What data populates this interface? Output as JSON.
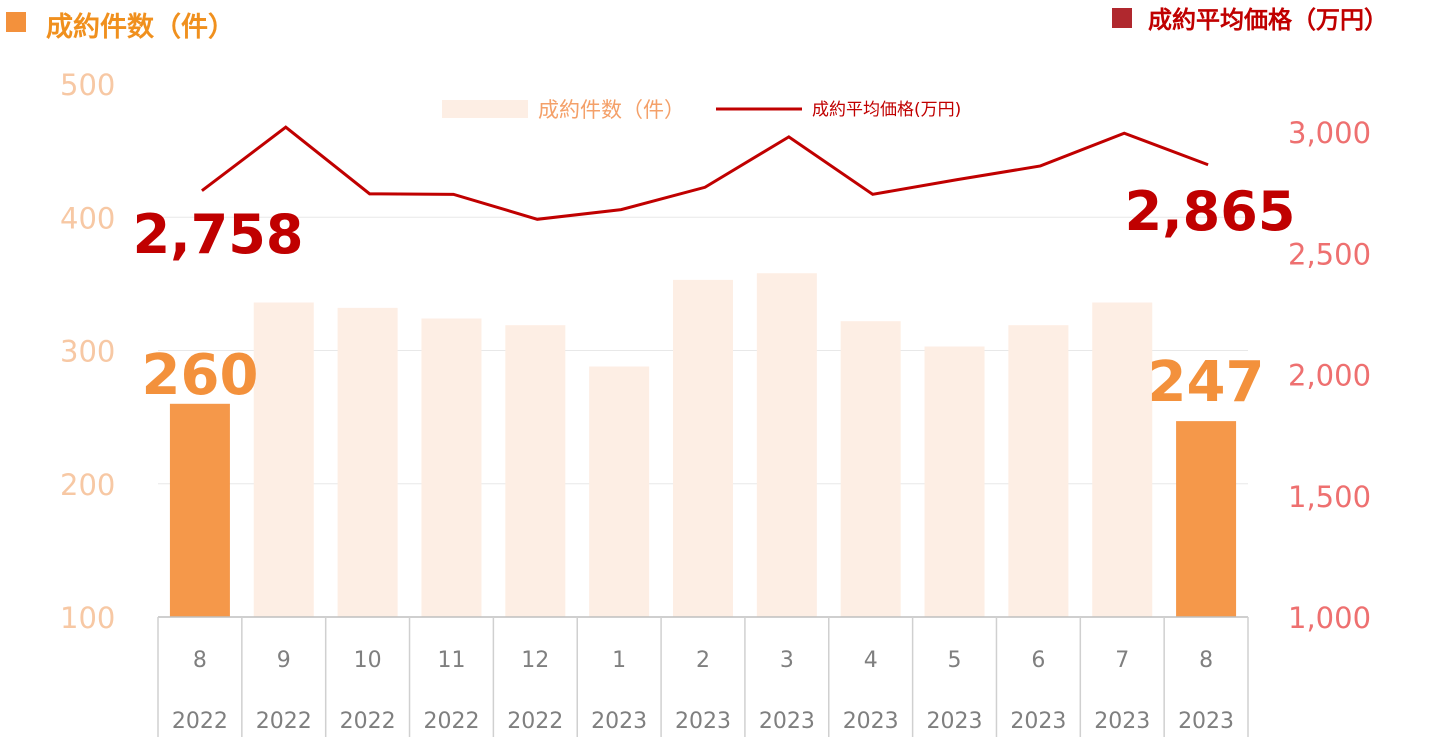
{
  "header": {
    "left_title": "成約件数（件）",
    "right_title": "成約平均価格（万円）"
  },
  "legend": {
    "bar_label": "成約件数（件）",
    "line_label": "成約平均価格(万円)"
  },
  "colors": {
    "bar_highlight": "#F5984A",
    "bar_muted": "#FDEEE4",
    "line": "#C00000",
    "left_axis_text": "#F7C8A4",
    "right_axis_text": "#EE7070",
    "left_title": "#F0901E",
    "right_title": "#C00000",
    "grid": "#E8E8E8",
    "xaxis_text": "#7F7F7F"
  },
  "chart_data": {
    "type": "bar",
    "categories": [
      {
        "month": "8",
        "year": "2022"
      },
      {
        "month": "9",
        "year": "2022"
      },
      {
        "month": "10",
        "year": "2022"
      },
      {
        "month": "11",
        "year": "2022"
      },
      {
        "month": "12",
        "year": "2022"
      },
      {
        "month": "1",
        "year": "2023"
      },
      {
        "month": "2",
        "year": "2023"
      },
      {
        "month": "3",
        "year": "2023"
      },
      {
        "month": "4",
        "year": "2023"
      },
      {
        "month": "5",
        "year": "2023"
      },
      {
        "month": "6",
        "year": "2023"
      },
      {
        "month": "7",
        "year": "2023"
      },
      {
        "month": "8",
        "year": "2023"
      }
    ],
    "series": [
      {
        "name": "成約件数（件）",
        "type": "bar",
        "axis": "left",
        "values": [
          260,
          336,
          332,
          324,
          319,
          288,
          353,
          358,
          322,
          303,
          319,
          336,
          247
        ],
        "highlight": [
          true,
          false,
          false,
          false,
          false,
          false,
          false,
          false,
          false,
          false,
          false,
          false,
          true
        ]
      },
      {
        "name": "成約平均価格(万円)",
        "type": "line",
        "axis": "right",
        "values": [
          2758,
          3020,
          2745,
          2743,
          2640,
          2680,
          2772,
          2980,
          2743,
          2803,
          2860,
          2995,
          2865
        ]
      }
    ],
    "y_left": {
      "min": 100,
      "max": 500,
      "ticks": [
        "100",
        "200",
        "300",
        "400",
        "500"
      ]
    },
    "y_right": {
      "min": 1000,
      "max": 3200,
      "ticks": [
        "1,000",
        "1,500",
        "2,000",
        "2,500",
        "3,000"
      ]
    },
    "data_labels": {
      "bar_first": "260",
      "bar_last": "247",
      "line_first": "2,758",
      "line_last": "2,865"
    },
    "legend_position": "top-center",
    "grid": true
  }
}
